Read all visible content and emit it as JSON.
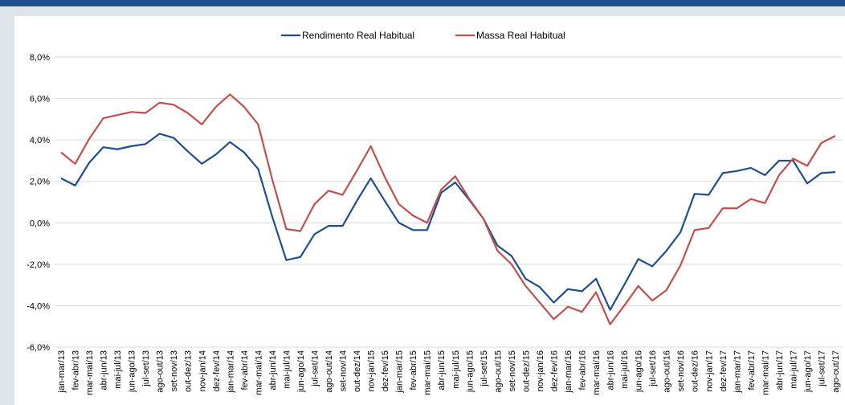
{
  "chart_data": {
    "type": "line",
    "categories": [
      "jan-mar/13",
      "fev-abr/13",
      "mar-mai/13",
      "abr-jun/13",
      "mai-jul/13",
      "jun-ago/13",
      "jul-set/13",
      "ago-out/13",
      "set-nov/13",
      "out-dez/13",
      "nov-jan/14",
      "dez-fev/14",
      "jan-mar/14",
      "fev-abr/14",
      "mar-mai/14",
      "abr-jun/14",
      "mai-jul/14",
      "jun-ago/14",
      "jul-set/14",
      "ago-out/14",
      "set-nov/14",
      "out-dez/14",
      "nov-jan/15",
      "dez-fev/15",
      "jan-mar/15",
      "fev-abr/15",
      "mar-mai/15",
      "abr-jun/15",
      "mai-jul/15",
      "jun-ago/15",
      "jul-set/15",
      "ago-out/15",
      "set-nov/15",
      "out-dez/15",
      "nov-jan/16",
      "dez-fev/16",
      "jan-mar/16",
      "fev-abr/16",
      "mar-mai/16",
      "abr-jun/16",
      "mai-jul/16",
      "jun-ago/16",
      "jul-set/16",
      "ago-out/16",
      "set-nov/16",
      "out-dez/16",
      "nov-jan/17",
      "dez-fev/17",
      "jan-mar/17",
      "fev-abr/17",
      "mar-mai/17",
      "abr-jun/17",
      "mai-jul/17",
      "jun-ago/17",
      "jul-set/17",
      "ago-out/17"
    ],
    "series": [
      {
        "name": "Rendimento Real Habitual",
        "color": "#1f4e8c",
        "values": [
          2.15,
          1.8,
          2.9,
          3.65,
          3.55,
          3.7,
          3.8,
          4.3,
          4.1,
          3.45,
          2.85,
          3.3,
          3.9,
          3.4,
          2.6,
          0.3,
          -1.8,
          -1.65,
          -0.55,
          -0.15,
          -0.15,
          1.05,
          2.15,
          1.05,
          0.0,
          -0.35,
          -0.35,
          1.45,
          1.95,
          1.1,
          0.2,
          -1.1,
          -1.6,
          -2.7,
          -3.1,
          -3.85,
          -3.2,
          -3.3,
          -2.7,
          -4.2,
          -3.0,
          -1.75,
          -2.1,
          -1.35,
          -0.45,
          1.4,
          1.35,
          2.4,
          2.5,
          2.65,
          2.3,
          3.0,
          3.0,
          1.9,
          2.4,
          2.45
        ]
      },
      {
        "name": "Massa Real Habitual",
        "color": "#c0504d",
        "values": [
          3.4,
          2.85,
          4.05,
          5.05,
          5.2,
          5.35,
          5.3,
          5.8,
          5.7,
          5.3,
          4.75,
          5.6,
          6.2,
          5.6,
          4.75,
          2.1,
          -0.3,
          -0.4,
          0.9,
          1.55,
          1.35,
          2.5,
          3.7,
          2.2,
          0.9,
          0.35,
          0.0,
          1.6,
          2.25,
          1.15,
          0.2,
          -1.35,
          -2.0,
          -3.05,
          -3.85,
          -4.65,
          -4.05,
          -4.3,
          -3.35,
          -4.9,
          -4.0,
          -3.05,
          -3.75,
          -3.25,
          -2.05,
          -0.35,
          -0.25,
          0.7,
          0.7,
          1.15,
          0.95,
          2.3,
          3.1,
          2.75,
          3.85,
          4.2
        ]
      }
    ],
    "ylim": [
      -6,
      8
    ],
    "yticks": [
      {
        "value": -6,
        "label": "-6,0%"
      },
      {
        "value": -4,
        "label": "-4,0%"
      },
      {
        "value": -2,
        "label": "-2,0%"
      },
      {
        "value": 0,
        "label": "0,0%"
      },
      {
        "value": 2,
        "label": "2,0%"
      },
      {
        "value": 4,
        "label": "4,0%"
      },
      {
        "value": 6,
        "label": "6,0%"
      },
      {
        "value": 8,
        "label": "8,0%"
      }
    ],
    "grid": true,
    "legend": "top"
  }
}
